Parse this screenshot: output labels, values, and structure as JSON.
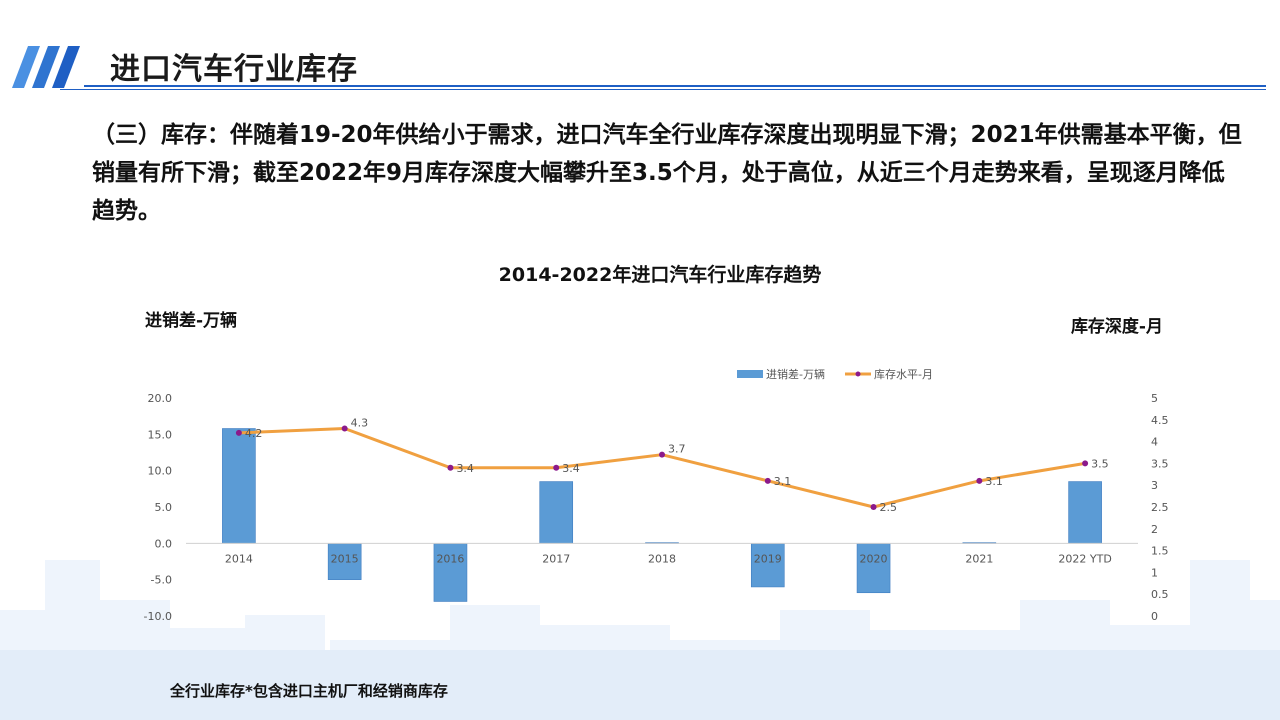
{
  "header": {
    "title": "进口汽车行业库存"
  },
  "body_text": "（三）库存：伴随着19-20年供给小于需求，进口汽车全行业库存深度出现明显下滑；2021年供需基本平衡，但销量有所下滑；截至2022年9月库存深度大幅攀升至3.5个月，处于高位，从近三个月走势来看，呈现逐月降低趋势。",
  "footnote": "全行业库存*包含进口主机厂和经销商库存",
  "colors": {
    "accent": "#1f5fc4",
    "bar": "#5b9bd5",
    "line": "#f0a040",
    "marker": "#8b1a8b",
    "skyline": "#eaf2fb"
  },
  "chart_data": {
    "type": "bar",
    "title": "2014-2022年进口汽车行业库存趋势",
    "ylabel_left": "进销差-万辆",
    "ylabel_right": "库存深度-月",
    "categories": [
      "2014",
      "2015",
      "2016",
      "2017",
      "2018",
      "2019",
      "2020",
      "2021",
      "2022 YTD"
    ],
    "series": [
      {
        "name": "进销差-万辆",
        "type": "bar",
        "axis": "left",
        "values": [
          15.8,
          -5.0,
          -8.0,
          8.5,
          0.1,
          -6.0,
          -6.8,
          0.1,
          8.5
        ]
      },
      {
        "name": "库存水平-月",
        "type": "line",
        "axis": "right",
        "values": [
          4.2,
          4.3,
          3.4,
          3.4,
          3.7,
          3.1,
          2.5,
          3.1,
          3.5
        ],
        "labels": [
          "4.2",
          "4.3",
          "3.4",
          "3.4",
          "3.7",
          "3.1",
          "2.5",
          "3.1",
          "3.5"
        ]
      }
    ],
    "y_left": {
      "min": -10,
      "max": 20,
      "ticks": [
        "20.0",
        "15.0",
        "10.0",
        "5.0",
        "0.0",
        "-5.0",
        "-10.0"
      ]
    },
    "y_right": {
      "min": 0,
      "max": 5,
      "ticks": [
        "5",
        "4.5",
        "4",
        "3.5",
        "3",
        "2.5",
        "2",
        "1.5",
        "1",
        "0.5",
        "0"
      ]
    },
    "legend_position": "top-right",
    "grid": false
  }
}
